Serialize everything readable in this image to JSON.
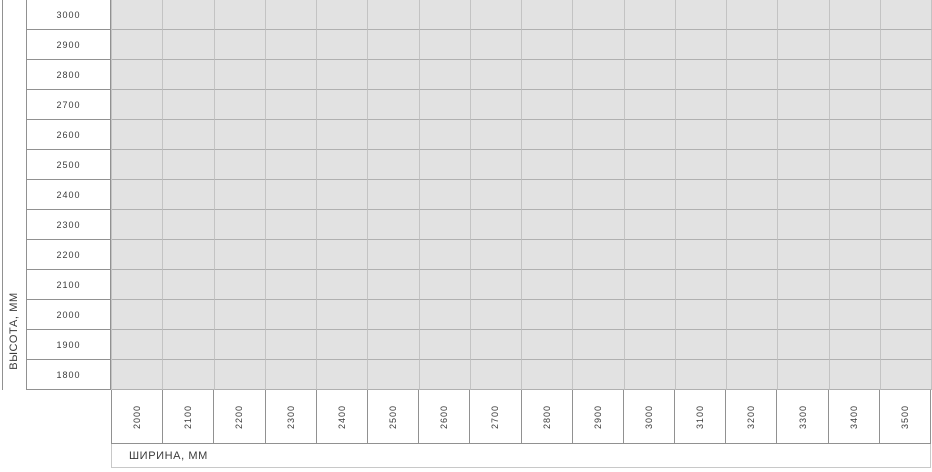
{
  "axes": {
    "y_label": "ВЫСОТА, ММ",
    "x_label": "ШИРИНА, ММ"
  },
  "grid": {
    "rows": 13,
    "cols": 16,
    "row_values": [
      "3000",
      "2900",
      "2800",
      "2700",
      "2600",
      "2500",
      "2400",
      "2300",
      "2200",
      "2100",
      "2000",
      "1900",
      "1800"
    ],
    "col_values": [
      "2000",
      "2100",
      "2200",
      "2300",
      "2400",
      "2500",
      "2600",
      "2700",
      "2800",
      "2900",
      "3000",
      "3100",
      "3200",
      "3300",
      "3400",
      "3500"
    ]
  },
  "colors": {
    "cell_bg": "#e2e2e2",
    "grid_line_h": "#b0b0b0",
    "grid_line_v": "#c3c3c3",
    "header_border": "#919191",
    "light_border": "#c8c8c8",
    "text": "#3b3b3b"
  },
  "chart_data": {
    "type": "table",
    "title": "",
    "xlabel": "ШИРИНА, ММ",
    "ylabel": "ВЫСОТА, ММ",
    "x_categories": [
      2000,
      2100,
      2200,
      2300,
      2400,
      2500,
      2600,
      2700,
      2800,
      2900,
      3000,
      3100,
      3200,
      3300,
      3400,
      3500
    ],
    "y_categories": [
      3000,
      2900,
      2800,
      2700,
      2600,
      2500,
      2400,
      2300,
      2200,
      2100,
      2000,
      1900,
      1800
    ],
    "values": "empty-cells",
    "grid": true,
    "legend": false
  }
}
